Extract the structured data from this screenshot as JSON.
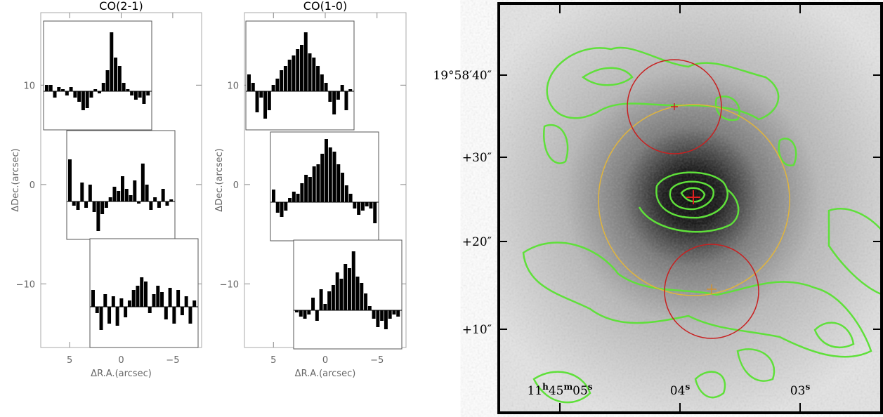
{
  "panels": [
    {
      "title": "CO(2-1)",
      "xlabel": "ΔR.A.(arcsec)",
      "ylabel": "ΔDec.(arcsec)",
      "xlim": [
        7.8,
        -7.8
      ],
      "ylim": [
        -16.4,
        17.3
      ],
      "xticks": [
        5,
        0,
        {
          "value": -5,
          "label": "−5"
        }
      ],
      "yticks": [
        10,
        0,
        {
          "value": -10,
          "label": "−10"
        }
      ],
      "spectra": [
        {
          "values": [
            3,
            3,
            -3,
            2,
            1,
            -2,
            2,
            -3,
            -5,
            -9,
            -8,
            -3,
            1,
            -1,
            4,
            10,
            28,
            16,
            12,
            4,
            1,
            -2,
            -4,
            -3,
            -6,
            -2
          ]
        },
        {
          "values": [
            20,
            -2,
            -4,
            9,
            -3,
            8,
            -5,
            -14,
            -6,
            -3,
            2,
            7,
            5,
            12,
            6,
            3,
            10,
            -1,
            18,
            8,
            -4,
            2,
            -3,
            6,
            -2,
            1
          ]
        },
        {
          "values": [
            8,
            -3,
            -11,
            6,
            -8,
            5,
            -9,
            4,
            -5,
            3,
            8,
            10,
            14,
            12,
            -3,
            6,
            10,
            7,
            -6,
            9,
            -8,
            8,
            -4,
            5,
            -8,
            3
          ]
        }
      ]
    },
    {
      "title": "CO(1-0)",
      "xlabel": "ΔR.A.(arcsec)",
      "ylabel": "ΔDec.(arcsec)",
      "xlim": [
        7.8,
        -7.8
      ],
      "ylim": [
        -16.4,
        17.3
      ],
      "xticks": [
        5,
        0,
        {
          "value": -5,
          "label": "−5"
        }
      ],
      "yticks": [
        10,
        0,
        {
          "value": -10,
          "label": "−10"
        }
      ],
      "spectra": [
        {
          "values": [
            8,
            4,
            -10,
            -3,
            -13,
            -9,
            3,
            6,
            10,
            12,
            15,
            17,
            20,
            22,
            28,
            18,
            16,
            12,
            8,
            4,
            -5,
            -11,
            -4,
            3,
            -9,
            1
          ]
        },
        {
          "values": [
            6,
            -5,
            -7,
            -4,
            2,
            5,
            4,
            9,
            13,
            12,
            17,
            18,
            23,
            30,
            26,
            24,
            18,
            14,
            8,
            4,
            -3,
            -6,
            -4,
            -2,
            -3,
            -10
          ]
        },
        {
          "values": [
            -1,
            -3,
            -4,
            -2,
            6,
            -5,
            10,
            3,
            9,
            12,
            18,
            15,
            22,
            20,
            28,
            16,
            13,
            8,
            2,
            -4,
            -8,
            -5,
            -9,
            -4,
            -2,
            -3
          ]
        }
      ]
    }
  ],
  "image": {
    "dec_labels": [
      "19°58′40″",
      "+30″",
      "+20″",
      "+10″"
    ],
    "ra_labels": [
      [
        "11",
        "h",
        "45",
        "m",
        "05",
        "s"
      ],
      [
        "04",
        "s"
      ],
      [
        "03",
        "s"
      ]
    ]
  }
}
